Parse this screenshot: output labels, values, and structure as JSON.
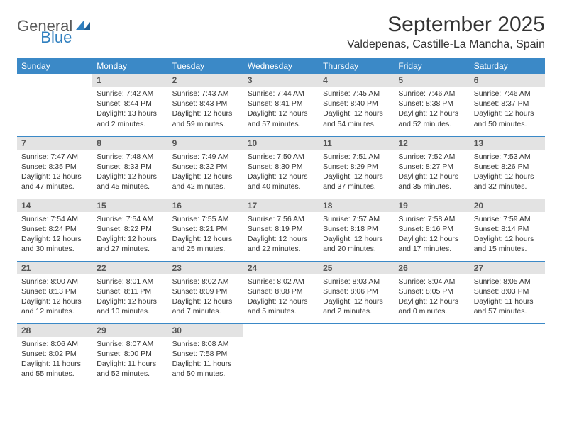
{
  "logo": {
    "general": "General",
    "blue": "Blue",
    "mark_color": "#2f7fbf"
  },
  "title": "September 2025",
  "location": "Valdepenas, Castille-La Mancha, Spain",
  "colors": {
    "header_bg": "#3b89c7",
    "header_text": "#ffffff",
    "daynum_bg": "#e3e3e3",
    "daynum_text": "#555555",
    "divider": "#3b89c7",
    "body_text": "#333333",
    "background": "#ffffff"
  },
  "typography": {
    "title_fontsize": 30,
    "location_fontsize": 16,
    "weekday_fontsize": 12,
    "daynum_fontsize": 12,
    "cell_fontsize": 10.5
  },
  "weekdays": [
    "Sunday",
    "Monday",
    "Tuesday",
    "Wednesday",
    "Thursday",
    "Friday",
    "Saturday"
  ],
  "weeks": [
    [
      null,
      {
        "n": "1",
        "sunrise": "7:42 AM",
        "sunset": "8:44 PM",
        "daylight": "13 hours and 2 minutes."
      },
      {
        "n": "2",
        "sunrise": "7:43 AM",
        "sunset": "8:43 PM",
        "daylight": "12 hours and 59 minutes."
      },
      {
        "n": "3",
        "sunrise": "7:44 AM",
        "sunset": "8:41 PM",
        "daylight": "12 hours and 57 minutes."
      },
      {
        "n": "4",
        "sunrise": "7:45 AM",
        "sunset": "8:40 PM",
        "daylight": "12 hours and 54 minutes."
      },
      {
        "n": "5",
        "sunrise": "7:46 AM",
        "sunset": "8:38 PM",
        "daylight": "12 hours and 52 minutes."
      },
      {
        "n": "6",
        "sunrise": "7:46 AM",
        "sunset": "8:37 PM",
        "daylight": "12 hours and 50 minutes."
      }
    ],
    [
      {
        "n": "7",
        "sunrise": "7:47 AM",
        "sunset": "8:35 PM",
        "daylight": "12 hours and 47 minutes."
      },
      {
        "n": "8",
        "sunrise": "7:48 AM",
        "sunset": "8:33 PM",
        "daylight": "12 hours and 45 minutes."
      },
      {
        "n": "9",
        "sunrise": "7:49 AM",
        "sunset": "8:32 PM",
        "daylight": "12 hours and 42 minutes."
      },
      {
        "n": "10",
        "sunrise": "7:50 AM",
        "sunset": "8:30 PM",
        "daylight": "12 hours and 40 minutes."
      },
      {
        "n": "11",
        "sunrise": "7:51 AM",
        "sunset": "8:29 PM",
        "daylight": "12 hours and 37 minutes."
      },
      {
        "n": "12",
        "sunrise": "7:52 AM",
        "sunset": "8:27 PM",
        "daylight": "12 hours and 35 minutes."
      },
      {
        "n": "13",
        "sunrise": "7:53 AM",
        "sunset": "8:26 PM",
        "daylight": "12 hours and 32 minutes."
      }
    ],
    [
      {
        "n": "14",
        "sunrise": "7:54 AM",
        "sunset": "8:24 PM",
        "daylight": "12 hours and 30 minutes."
      },
      {
        "n": "15",
        "sunrise": "7:54 AM",
        "sunset": "8:22 PM",
        "daylight": "12 hours and 27 minutes."
      },
      {
        "n": "16",
        "sunrise": "7:55 AM",
        "sunset": "8:21 PM",
        "daylight": "12 hours and 25 minutes."
      },
      {
        "n": "17",
        "sunrise": "7:56 AM",
        "sunset": "8:19 PM",
        "daylight": "12 hours and 22 minutes."
      },
      {
        "n": "18",
        "sunrise": "7:57 AM",
        "sunset": "8:18 PM",
        "daylight": "12 hours and 20 minutes."
      },
      {
        "n": "19",
        "sunrise": "7:58 AM",
        "sunset": "8:16 PM",
        "daylight": "12 hours and 17 minutes."
      },
      {
        "n": "20",
        "sunrise": "7:59 AM",
        "sunset": "8:14 PM",
        "daylight": "12 hours and 15 minutes."
      }
    ],
    [
      {
        "n": "21",
        "sunrise": "8:00 AM",
        "sunset": "8:13 PM",
        "daylight": "12 hours and 12 minutes."
      },
      {
        "n": "22",
        "sunrise": "8:01 AM",
        "sunset": "8:11 PM",
        "daylight": "12 hours and 10 minutes."
      },
      {
        "n": "23",
        "sunrise": "8:02 AM",
        "sunset": "8:09 PM",
        "daylight": "12 hours and 7 minutes."
      },
      {
        "n": "24",
        "sunrise": "8:02 AM",
        "sunset": "8:08 PM",
        "daylight": "12 hours and 5 minutes."
      },
      {
        "n": "25",
        "sunrise": "8:03 AM",
        "sunset": "8:06 PM",
        "daylight": "12 hours and 2 minutes."
      },
      {
        "n": "26",
        "sunrise": "8:04 AM",
        "sunset": "8:05 PM",
        "daylight": "12 hours and 0 minutes."
      },
      {
        "n": "27",
        "sunrise": "8:05 AM",
        "sunset": "8:03 PM",
        "daylight": "11 hours and 57 minutes."
      }
    ],
    [
      {
        "n": "28",
        "sunrise": "8:06 AM",
        "sunset": "8:02 PM",
        "daylight": "11 hours and 55 minutes."
      },
      {
        "n": "29",
        "sunrise": "8:07 AM",
        "sunset": "8:00 PM",
        "daylight": "11 hours and 52 minutes."
      },
      {
        "n": "30",
        "sunrise": "8:08 AM",
        "sunset": "7:58 PM",
        "daylight": "11 hours and 50 minutes."
      },
      null,
      null,
      null,
      null
    ]
  ],
  "labels": {
    "sunrise": "Sunrise:",
    "sunset": "Sunset:",
    "daylight": "Daylight:"
  }
}
